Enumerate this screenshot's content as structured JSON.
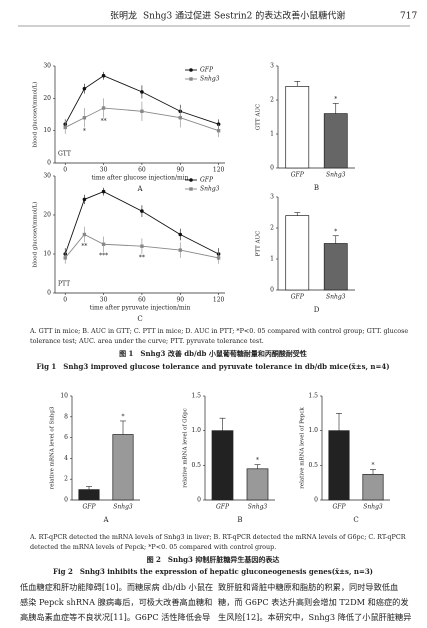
{
  "header": {
    "author": "张明龙",
    "title": "Snhg3 通过促进 Sestrin2 的表达改善小鼠糖代谢",
    "page": "717"
  },
  "chart_data": [
    {
      "type": "line",
      "panel": "A",
      "label": "GTT",
      "ylabel": "blood glucose/(mmol/L)",
      "xlabel": "time after glucose injection/min",
      "x": [
        0,
        15,
        30,
        60,
        90,
        120
      ],
      "xlim": [
        -8,
        125
      ],
      "xticks": [
        0,
        30,
        60,
        90,
        120
      ],
      "ylim": [
        0,
        30
      ],
      "yticks": [
        0,
        10,
        20,
        30
      ],
      "legend": "upper right",
      "series": [
        {
          "name": "GFP",
          "color": "#111111",
          "marker": "circle",
          "values": [
            12,
            23,
            27,
            22,
            16,
            12
          ],
          "errors": [
            1.5,
            1.5,
            1.2,
            2,
            2,
            1.5
          ]
        },
        {
          "name": "Snhg3",
          "color": "#888888",
          "marker": "square",
          "values": [
            11,
            14,
            17,
            16,
            14,
            10
          ],
          "errors": [
            2,
            3,
            3,
            3,
            3,
            2
          ]
        }
      ],
      "annotations": [
        {
          "text": "*",
          "x": 15
        },
        {
          "text": "**",
          "x": 30
        }
      ]
    },
    {
      "type": "bar",
      "panel": "B",
      "ylabel": "GTT AUC",
      "categories": [
        "GFP",
        "Snhg3"
      ],
      "values": [
        2.4,
        1.6
      ],
      "errors": [
        0.15,
        0.3
      ],
      "colors": [
        "#ffffff",
        "#666666"
      ],
      "ylim": [
        0,
        3
      ],
      "yticks": [
        0,
        1,
        2,
        3
      ],
      "annotations": [
        {
          "text": "*",
          "category": "Snhg3"
        }
      ]
    },
    {
      "type": "line",
      "panel": "C",
      "label": "PTT",
      "ylabel": "blood glucose/(mmol/L)",
      "xlabel": "time after pyruvate injection/min",
      "x": [
        0,
        15,
        30,
        60,
        90,
        120
      ],
      "xlim": [
        -8,
        125
      ],
      "xticks": [
        0,
        30,
        60,
        90,
        120
      ],
      "ylim": [
        0,
        30
      ],
      "yticks": [
        0,
        10,
        20,
        30
      ],
      "legend": "upper right",
      "series": [
        {
          "name": "GFP",
          "color": "#111111",
          "marker": "circle",
          "values": [
            10,
            24,
            26,
            21,
            15,
            10
          ],
          "errors": [
            1.5,
            1.2,
            1,
            1.5,
            1.5,
            1.5
          ]
        },
        {
          "name": "Snhg3",
          "color": "#888888",
          "marker": "square",
          "values": [
            9,
            15,
            12.5,
            12,
            11,
            9
          ],
          "errors": [
            1.5,
            2,
            2,
            2,
            2,
            1.5
          ]
        }
      ],
      "annotations": [
        {
          "text": "**",
          "x": 15
        },
        {
          "text": "***",
          "x": 30
        },
        {
          "text": "**",
          "x": 60
        }
      ]
    },
    {
      "type": "bar",
      "panel": "D",
      "ylabel": "PTT AUC",
      "categories": [
        "GFP",
        "Snhg3"
      ],
      "values": [
        2.4,
        1.5
      ],
      "errors": [
        0.1,
        0.25
      ],
      "colors": [
        "#ffffff",
        "#666666"
      ],
      "ylim": [
        0,
        3
      ],
      "yticks": [
        0,
        1,
        2,
        3
      ],
      "annotations": [
        {
          "text": "*",
          "category": "Snhg3"
        }
      ]
    },
    {
      "type": "bar",
      "panel": "A",
      "ylabel": "relative mRNA level of Snhg3",
      "categories": [
        "GFP",
        "Snhg3"
      ],
      "values": [
        1,
        6.3
      ],
      "errors": [
        0.3,
        1.3
      ],
      "colors": [
        "#222222",
        "#999999"
      ],
      "ylim": [
        0,
        10
      ],
      "yticks": [
        0,
        2,
        4,
        6,
        8,
        10
      ],
      "annotations": [
        {
          "text": "*",
          "category": "Snhg3"
        }
      ]
    },
    {
      "type": "bar",
      "panel": "B",
      "ylabel": "relative mRNA level of G6pc",
      "categories": [
        "GFP",
        "Snhg3"
      ],
      "values": [
        1.0,
        0.45
      ],
      "errors": [
        0.18,
        0.06
      ],
      "colors": [
        "#222222",
        "#999999"
      ],
      "ylim": [
        0,
        1.5
      ],
      "yticks": [
        0,
        0.5,
        {
          "value": 1,
          "label": "1.0"
        },
        1.5
      ],
      "annotations": [
        {
          "text": "*",
          "category": "Snhg3"
        }
      ]
    },
    {
      "type": "bar",
      "panel": "C",
      "ylabel": "relative mRNA level of Pepck",
      "categories": [
        "GFP",
        "Snhg3"
      ],
      "values": [
        1.0,
        0.37
      ],
      "errors": [
        0.25,
        0.07
      ],
      "colors": [
        "#222222",
        "#999999"
      ],
      "ylim": [
        0,
        1.5
      ],
      "yticks": [
        0,
        0.5,
        {
          "value": 1,
          "label": "1.0"
        },
        1.5
      ],
      "annotations": [
        {
          "text": "*",
          "category": "Snhg3"
        }
      ]
    }
  ],
  "figure1": {
    "caption": [
      "A. GTT in mice; B. AUC in GTT; C. PTT in mice; D. AUC in PTT; *P<0. 05 compared with control group; GTT. glucose",
      "tolerance test; AUC. area under the curve; PTT. pyruvate tolerance test."
    ],
    "title_cn": "图 1　Snhg3 改善 db/db 小鼠葡萄糖耐量和丙酮酸耐受性",
    "title_en": "Fig 1　Snhg3 improved glucose tolerance and pyruvate tolerance in db/db mice(x̄±s, n=4)"
  },
  "figure2": {
    "caption": [
      "A. RT-qPCR detected the mRNA levels of Snhg3 in liver; B. RT-qPCR detected the mRNA levels of G6pc; C. RT-qPCR",
      "detected the mRNA levels of Pepck; *P<0. 05 compared with control group."
    ],
    "title_cn": "图 2　Snhg3 抑制肝脏糖异生基因的表达",
    "title_en": "Fig 2　Snhg3 inhibits the expression of hepatic gluconeogenesis genes(x̄±s, n=3)"
  },
  "body": {
    "left": [
      "低血糖症和肝功能障碍[10]。而糖尿病 db/db 小鼠在",
      "感染 Pepck shRNA 腺病毒后，可极大改善高血糖和",
      "高胰岛素血症等不良状况[11]。G6PC 活性降低会导"
    ],
    "right": [
      "致肝脏和肾脏中糖原和脂肪的积累，同时导致低血",
      "糖，而 G6PC 表达升高则会增加 T2DM 和癌症的发",
      "生风险[12]。本研究中，Snhg3 降低了小鼠肝脏糖异"
    ]
  }
}
